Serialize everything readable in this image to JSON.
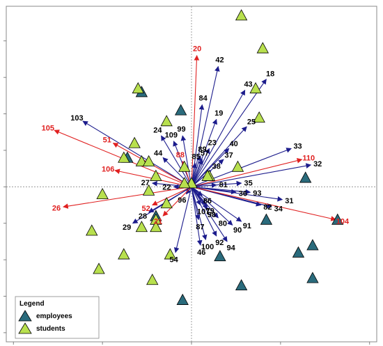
{
  "chart_data": {
    "type": "scatter",
    "subtype": "biplot",
    "xlim": [
      -5.2,
      5.2
    ],
    "ylim": [
      -4.25,
      4.95
    ],
    "axis_crossing": [
      0,
      0
    ],
    "grid": false,
    "legend": {
      "title": "Legend",
      "placement": "bottom-left",
      "entries": [
        {
          "label": "employees",
          "color": "#2a6b7c"
        },
        {
          "label": "students",
          "color": "#b8e04e"
        }
      ]
    },
    "colors": {
      "vector_default": "#1c1c8c",
      "vector_highlight": "#e02020",
      "label_default": "#000000",
      "label_highlight": "#e02020",
      "employees": "#2a6b7c",
      "students": "#b8e04e",
      "frame": "#888888"
    },
    "series": [
      {
        "name": "employees",
        "marker": "triangle",
        "points": [
          [
            -1.4,
            2.6
          ],
          [
            -1.8,
            0.8
          ],
          [
            -0.3,
            2.1
          ],
          [
            3.2,
            0.25
          ],
          [
            4.1,
            -0.9
          ],
          [
            2.1,
            -0.9
          ],
          [
            3.4,
            -1.6
          ],
          [
            3.0,
            -1.8
          ],
          [
            3.4,
            -2.5
          ],
          [
            0.8,
            -1.9
          ],
          [
            1.4,
            -2.7
          ],
          [
            -0.25,
            -3.1
          ],
          [
            -1.0,
            -0.8
          ]
        ]
      },
      {
        "name": "students",
        "marker": "triangle",
        "points": [
          [
            1.4,
            4.7
          ],
          [
            2.0,
            3.8
          ],
          [
            -1.5,
            2.7
          ],
          [
            1.8,
            2.7
          ],
          [
            1.9,
            1.9
          ],
          [
            -0.7,
            1.8
          ],
          [
            -1.6,
            1.2
          ],
          [
            -1.9,
            0.8
          ],
          [
            -1.4,
            0.7
          ],
          [
            -1.2,
            0.7
          ],
          [
            -1.0,
            0.3
          ],
          [
            -0.2,
            0.55
          ],
          [
            0.5,
            0.3
          ],
          [
            1.3,
            0.55
          ],
          [
            -1.2,
            -0.1
          ],
          [
            -2.5,
            -0.2
          ],
          [
            -0.7,
            -0.45
          ],
          [
            -1.0,
            -0.9
          ],
          [
            -1.4,
            -1.1
          ],
          [
            -1.0,
            -1.1
          ],
          [
            -2.8,
            -1.2
          ],
          [
            -0.6,
            -1.85
          ],
          [
            -1.9,
            -1.85
          ],
          [
            -2.6,
            -2.25
          ],
          [
            -1.1,
            -2.55
          ],
          [
            0.0,
            0.1
          ],
          [
            -0.2,
            0.1
          ],
          [
            0.45,
            0.3
          ]
        ]
      }
    ],
    "vectors": [
      {
        "label": "20",
        "x": 0.15,
        "y": 3.6,
        "highlight": true
      },
      {
        "label": "42",
        "x": 0.75,
        "y": 3.3,
        "highlight": false
      },
      {
        "label": "18",
        "x": 2.1,
        "y": 2.95,
        "highlight": false
      },
      {
        "label": "43",
        "x": 1.5,
        "y": 2.65,
        "highlight": false
      },
      {
        "label": "84",
        "x": 0.3,
        "y": 2.25,
        "highlight": false
      },
      {
        "label": "19",
        "x": 0.7,
        "y": 1.85,
        "highlight": false
      },
      {
        "label": "25",
        "x": 1.55,
        "y": 1.65,
        "highlight": false
      },
      {
        "label": "103",
        "x": -3.05,
        "y": 1.8,
        "highlight": false
      },
      {
        "label": "105",
        "x": -3.85,
        "y": 1.55,
        "highlight": true
      },
      {
        "label": "24",
        "x": -0.85,
        "y": 1.4,
        "highlight": false
      },
      {
        "label": "99",
        "x": -0.25,
        "y": 1.4,
        "highlight": false
      },
      {
        "label": "109",
        "x": -0.5,
        "y": 1.25,
        "highlight": false
      },
      {
        "label": "51",
        "x": -2.2,
        "y": 1.2,
        "highlight": true
      },
      {
        "label": "44",
        "x": -0.8,
        "y": 0.8,
        "highlight": false
      },
      {
        "label": "88",
        "x": -0.25,
        "y": 0.7,
        "highlight": true
      },
      {
        "label": "23",
        "x": 0.5,
        "y": 1.05,
        "highlight": false
      },
      {
        "label": "40",
        "x": 1.05,
        "y": 1.05,
        "highlight": false
      },
      {
        "label": "33",
        "x": 2.8,
        "y": 1.05,
        "highlight": false
      },
      {
        "label": "110",
        "x": 3.1,
        "y": 0.75,
        "highlight": true
      },
      {
        "label": "32",
        "x": 3.35,
        "y": 0.6,
        "highlight": false
      },
      {
        "label": "89",
        "x": 0.25,
        "y": 0.85,
        "highlight": false
      },
      {
        "label": "37",
        "x": 0.9,
        "y": 0.75,
        "highlight": false
      },
      {
        "label": "85",
        "x": 0.1,
        "y": 0.65,
        "highlight": false
      },
      {
        "label": "38",
        "x": 0.55,
        "y": 0.45,
        "highlight": false
      },
      {
        "label": "106",
        "x": -2.15,
        "y": 0.45,
        "highlight": true
      },
      {
        "label": "27",
        "x": -1.1,
        "y": 0.1,
        "highlight": false
      },
      {
        "label": "35",
        "x": 1.4,
        "y": 0.1,
        "highlight": false
      },
      {
        "label": "22",
        "x": -0.5,
        "y": 0.0,
        "highlight": false
      },
      {
        "label": "81",
        "x": 0.7,
        "y": 0.05,
        "highlight": false
      },
      {
        "label": "36",
        "x": 1.25,
        "y": -0.15,
        "highlight": false
      },
      {
        "label": "93",
        "x": 1.65,
        "y": -0.15,
        "highlight": false
      },
      {
        "label": "96",
        "x": -0.15,
        "y": -0.2,
        "highlight": false
      },
      {
        "label": "86",
        "x": 0.3,
        "y": -0.25,
        "highlight": false
      },
      {
        "label": "26",
        "x": -3.6,
        "y": -0.55,
        "highlight": true
      },
      {
        "label": "52",
        "x": -1.1,
        "y": -0.5,
        "highlight": true
      },
      {
        "label": "28",
        "x": -1.2,
        "y": -0.7,
        "highlight": false
      },
      {
        "label": "107",
        "x": 0.25,
        "y": -0.5,
        "highlight": false
      },
      {
        "label": "79",
        "x": 0.4,
        "y": -0.5,
        "highlight": false
      },
      {
        "label": "80",
        "x": 0.75,
        "y": -0.85,
        "highlight": false
      },
      {
        "label": "31",
        "x": 2.55,
        "y": -0.35,
        "highlight": false
      },
      {
        "label": "82",
        "x": 1.95,
        "y": -0.5,
        "highlight": false
      },
      {
        "label": "34",
        "x": 2.25,
        "y": -0.55,
        "highlight": false
      },
      {
        "label": "104",
        "x": 4.05,
        "y": -0.9,
        "highlight": true
      },
      {
        "label": "98",
        "x": 0.45,
        "y": -0.6,
        "highlight": false
      },
      {
        "label": "21",
        "x": -0.8,
        "y": -0.8,
        "highlight": true
      },
      {
        "label": "29",
        "x": -1.65,
        "y": -1.0,
        "highlight": false
      },
      {
        "label": "87",
        "x": 0.2,
        "y": -0.9,
        "highlight": false
      },
      {
        "label": "90",
        "x": 1.15,
        "y": -1.05,
        "highlight": false
      },
      {
        "label": "91",
        "x": 1.4,
        "y": -0.95,
        "highlight": false
      },
      {
        "label": "92",
        "x": 0.7,
        "y": -1.35,
        "highlight": false
      },
      {
        "label": "100",
        "x": 0.4,
        "y": -1.45,
        "highlight": false
      },
      {
        "label": "94",
        "x": 1.0,
        "y": -1.5,
        "highlight": false
      },
      {
        "label": "46",
        "x": 0.25,
        "y": -1.6,
        "highlight": false
      },
      {
        "label": "54",
        "x": -0.45,
        "y": -1.8,
        "highlight": false
      },
      {
        "label": "57",
        "x": 0.3,
        "y": 0.75,
        "highlight": false
      }
    ]
  }
}
